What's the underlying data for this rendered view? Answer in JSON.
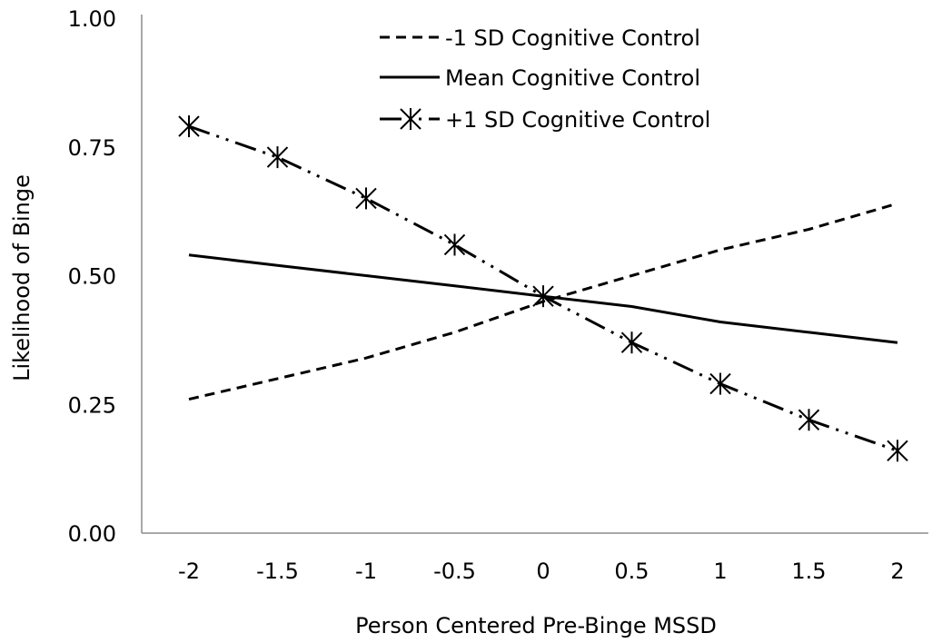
{
  "chart_data": {
    "type": "line",
    "title": "",
    "xlabel": "Person Centered Pre-Binge MSSD",
    "ylabel": "Likelihood of Binge",
    "x": [
      -2,
      -1.5,
      -1,
      -0.5,
      0,
      0.5,
      1,
      1.5,
      2
    ],
    "x_tick_labels": [
      "-2",
      "-1.5",
      "-1",
      "-0.5",
      "0",
      "0.5",
      "1",
      "1.5",
      "2"
    ],
    "y_ticks": [
      0,
      0.25,
      0.5,
      0.75,
      1
    ],
    "y_tick_labels": [
      "0.00",
      "0.25",
      "0.50",
      "0.75",
      "1.00"
    ],
    "ylim": [
      0,
      1
    ],
    "grid": false,
    "legend_position": "top-right",
    "series": [
      {
        "name": "-1 SD Cognitive Control",
        "style": "dashed",
        "marker": "none",
        "color": "#000000",
        "values": [
          0.26,
          0.3,
          0.34,
          0.39,
          0.45,
          0.5,
          0.55,
          0.59,
          0.64
        ]
      },
      {
        "name": "Mean Cognitive Control",
        "style": "solid",
        "marker": "none",
        "color": "#000000",
        "values": [
          0.54,
          0.52,
          0.5,
          0.48,
          0.46,
          0.44,
          0.41,
          0.39,
          0.37
        ]
      },
      {
        "name": "+1 SD Cognitive Control",
        "style": "dash-dot-dot",
        "marker": "asterisk",
        "color": "#000000",
        "values": [
          0.79,
          0.73,
          0.65,
          0.56,
          0.46,
          0.37,
          0.29,
          0.22,
          0.16
        ]
      }
    ]
  }
}
